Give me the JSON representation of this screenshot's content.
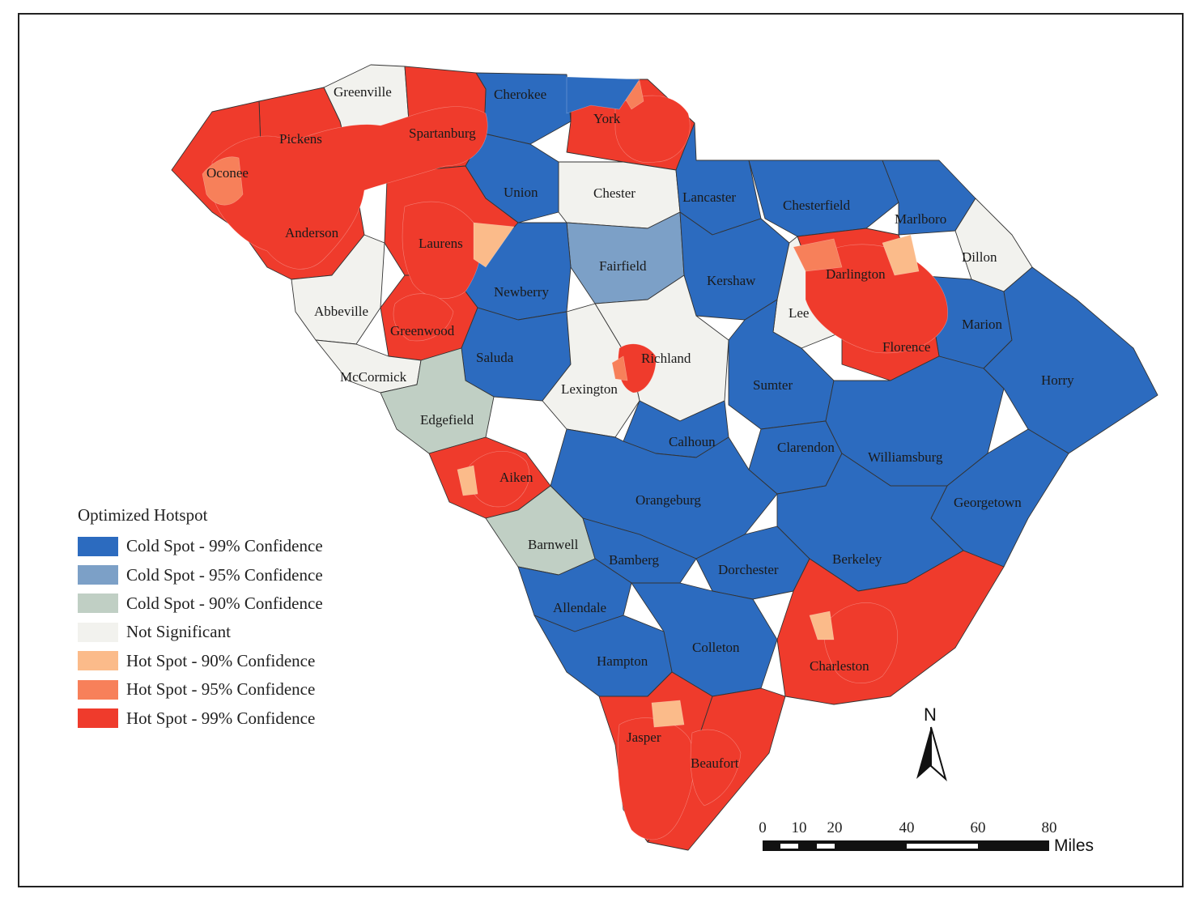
{
  "map": {
    "legend_title": "Optimized Hotspot",
    "legend": [
      {
        "label": "Cold Spot - 99% Confidence",
        "color": "#2c6bbf"
      },
      {
        "label": "Cold Spot - 95% Confidence",
        "color": "#7ca0c7"
      },
      {
        "label": "Cold Spot - 90% Confidence",
        "color": "#c0cfc4"
      },
      {
        "label": "Not Significant",
        "color": "#f2f2ee"
      },
      {
        "label": "Hot Spot - 90% Confidence",
        "color": "#fbbb8a"
      },
      {
        "label": "Hot Spot - 95% Confidence",
        "color": "#f7805a"
      },
      {
        "label": "Hot Spot - 99% Confidence",
        "color": "#ef3b2c"
      }
    ],
    "counties": [
      {
        "name": "Greenville",
        "class": 3
      },
      {
        "name": "Cherokee",
        "class": 0
      },
      {
        "name": "York",
        "class": 6
      },
      {
        "name": "Pickens",
        "class": 6
      },
      {
        "name": "Spartanburg",
        "class": 6
      },
      {
        "name": "Oconee",
        "class": 6
      },
      {
        "name": "Union",
        "class": 0
      },
      {
        "name": "Chester",
        "class": 3
      },
      {
        "name": "Lancaster",
        "class": 0
      },
      {
        "name": "Chesterfield",
        "class": 0
      },
      {
        "name": "Marlboro",
        "class": 0
      },
      {
        "name": "Anderson",
        "class": 6
      },
      {
        "name": "Laurens",
        "class": 6
      },
      {
        "name": "Dillon",
        "class": 3
      },
      {
        "name": "Fairfield",
        "class": 1
      },
      {
        "name": "Kershaw",
        "class": 0
      },
      {
        "name": "Darlington",
        "class": 6
      },
      {
        "name": "Newberry",
        "class": 0
      },
      {
        "name": "Abbeville",
        "class": 3
      },
      {
        "name": "Lee",
        "class": 3
      },
      {
        "name": "Marion",
        "class": 0
      },
      {
        "name": "Greenwood",
        "class": 6
      },
      {
        "name": "Florence",
        "class": 6
      },
      {
        "name": "Richland",
        "class": 3
      },
      {
        "name": "Saluda",
        "class": 0
      },
      {
        "name": "Horry",
        "class": 0
      },
      {
        "name": "McCormick",
        "class": 3
      },
      {
        "name": "Sumter",
        "class": 0
      },
      {
        "name": "Lexington",
        "class": 3
      },
      {
        "name": "Edgefield",
        "class": 2
      },
      {
        "name": "Calhoun",
        "class": 0
      },
      {
        "name": "Clarendon",
        "class": 0
      },
      {
        "name": "Williamsburg",
        "class": 0
      },
      {
        "name": "Aiken",
        "class": 6
      },
      {
        "name": "Orangeburg",
        "class": 0
      },
      {
        "name": "Georgetown",
        "class": 0
      },
      {
        "name": "Barnwell",
        "class": 2
      },
      {
        "name": "Bamberg",
        "class": 0
      },
      {
        "name": "Dorchester",
        "class": 0
      },
      {
        "name": "Berkeley",
        "class": 0
      },
      {
        "name": "Allendale",
        "class": 0
      },
      {
        "name": "Colleton",
        "class": 0
      },
      {
        "name": "Hampton",
        "class": 0
      },
      {
        "name": "Charleston",
        "class": 6
      },
      {
        "name": "Jasper",
        "class": 6
      },
      {
        "name": "Beaufort",
        "class": 6
      }
    ],
    "north_label": "N",
    "scale_ticks": [
      "0",
      "10",
      "20",
      "40",
      "60",
      "80"
    ],
    "scale_unit": "Miles"
  }
}
